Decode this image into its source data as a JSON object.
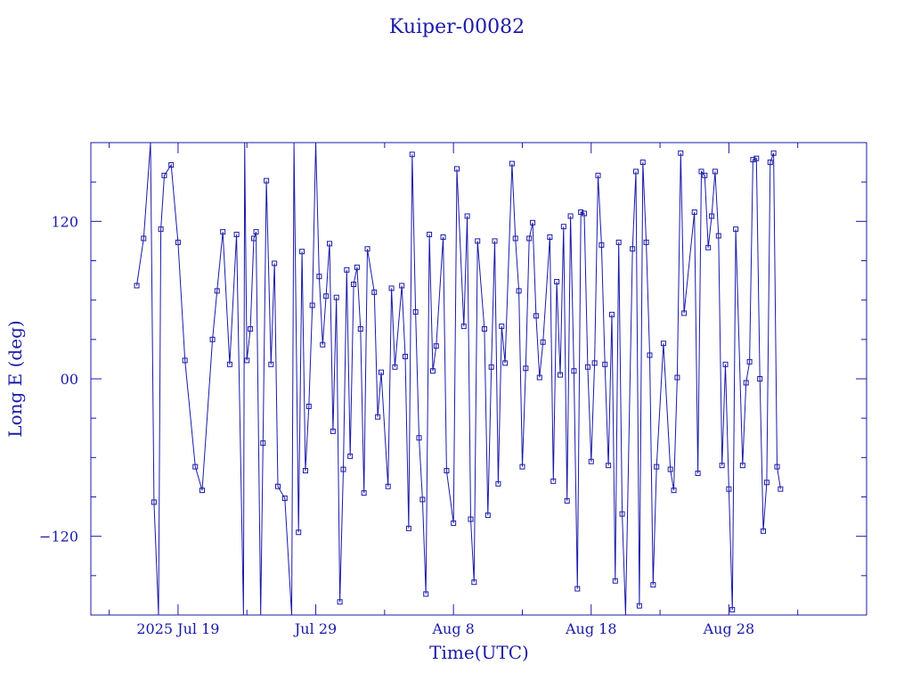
{
  "chart_data": {
    "type": "line",
    "title": "Kuiper-00082",
    "xlabel": "Time(UTC)",
    "ylabel": "Long E (deg)",
    "x_ticks": [
      {
        "date": "2025-07-19",
        "label": "2025 Jul 19"
      },
      {
        "date": "2025-07-29",
        "label": "Jul 29"
      },
      {
        "date": "2025-08-08",
        "label": "Aug  8"
      },
      {
        "date": "2025-08-18",
        "label": "Aug 18"
      },
      {
        "date": "2025-08-28",
        "label": "Aug 28"
      }
    ],
    "y_ticks": [
      {
        "value": 120,
        "label": "120"
      },
      {
        "value": 0,
        "label": "00"
      },
      {
        "value": -120,
        "label": "−120"
      }
    ],
    "xlim": [
      "2025-07-12T16:00",
      "2025-09-07T00:00"
    ],
    "ylim": [
      -180,
      180
    ],
    "grid": false,
    "series": [
      {
        "points": [
          [
            "2025-07-16T00:00",
            71
          ],
          [
            "2025-07-16T12:00",
            107
          ],
          [
            "2025-07-17T00:00",
            180
          ],
          [
            "2025-07-17T06:00",
            -94
          ],
          [
            "2025-07-17T14:00",
            -180
          ],
          [
            "2025-07-17T18:00",
            114
          ],
          [
            "2025-07-18T00:00",
            155
          ],
          [
            "2025-07-18T12:00",
            163
          ],
          [
            "2025-07-19T00:00",
            104
          ],
          [
            "2025-07-19T12:00",
            14
          ],
          [
            "2025-07-20T06:00",
            -67
          ],
          [
            "2025-07-20T18:00",
            -85
          ],
          [
            "2025-07-21T12:00",
            30
          ],
          [
            "2025-07-21T20:00",
            67
          ],
          [
            "2025-07-22T06:00",
            112
          ],
          [
            "2025-07-22T18:00",
            11
          ],
          [
            "2025-07-23T06:00",
            110
          ],
          [
            "2025-07-23T18:00",
            -180
          ],
          [
            "2025-07-23T20:00",
            180
          ],
          [
            "2025-07-24T00:00",
            14
          ],
          [
            "2025-07-24T06:00",
            38
          ],
          [
            "2025-07-24T12:00",
            107
          ],
          [
            "2025-07-24T16:00",
            112
          ],
          [
            "2025-07-25T00:00",
            -180
          ],
          [
            "2025-07-25T04:00",
            -49
          ],
          [
            "2025-07-25T10:00",
            151
          ],
          [
            "2025-07-25T18:00",
            11
          ],
          [
            "2025-07-26T00:00",
            88
          ],
          [
            "2025-07-26T06:00",
            -82
          ],
          [
            "2025-07-26T18:00",
            -91
          ],
          [
            "2025-07-27T06:00",
            -180
          ],
          [
            "2025-07-27T10:00",
            180
          ],
          [
            "2025-07-27T18:00",
            -117
          ],
          [
            "2025-07-28T00:00",
            97
          ],
          [
            "2025-07-28T06:00",
            -70
          ],
          [
            "2025-07-28T12:00",
            -21
          ],
          [
            "2025-07-28T18:00",
            56
          ],
          [
            "2025-07-29T00:00",
            180
          ],
          [
            "2025-07-29T06:00",
            78
          ],
          [
            "2025-07-29T12:00",
            26
          ],
          [
            "2025-07-29T18:00",
            63
          ],
          [
            "2025-07-30T00:00",
            103
          ],
          [
            "2025-07-30T06:00",
            -40
          ],
          [
            "2025-07-30T12:00",
            62
          ],
          [
            "2025-07-30T18:00",
            -170
          ],
          [
            "2025-07-31T00:00",
            -69
          ],
          [
            "2025-07-31T06:00",
            83
          ],
          [
            "2025-07-31T12:00",
            -59
          ],
          [
            "2025-07-31T18:00",
            72
          ],
          [
            "2025-08-01T00:00",
            85
          ],
          [
            "2025-08-01T06:00",
            38
          ],
          [
            "2025-08-01T12:00",
            -87
          ],
          [
            "2025-08-01T18:00",
            99
          ],
          [
            "2025-08-02T06:00",
            66
          ],
          [
            "2025-08-02T12:00",
            -29
          ],
          [
            "2025-08-02T18:00",
            5
          ],
          [
            "2025-08-03T06:00",
            -82
          ],
          [
            "2025-08-03T12:00",
            69
          ],
          [
            "2025-08-03T18:00",
            9
          ],
          [
            "2025-08-04T06:00",
            71
          ],
          [
            "2025-08-04T12:00",
            17
          ],
          [
            "2025-08-04T18:00",
            -114
          ],
          [
            "2025-08-05T00:00",
            171
          ],
          [
            "2025-08-05T06:00",
            51
          ],
          [
            "2025-08-05T12:00",
            -45
          ],
          [
            "2025-08-05T18:00",
            -92
          ],
          [
            "2025-08-06T00:00",
            -164
          ],
          [
            "2025-08-06T06:00",
            110
          ],
          [
            "2025-08-06T12:00",
            6
          ],
          [
            "2025-08-06T18:00",
            25
          ],
          [
            "2025-08-07T06:00",
            108
          ],
          [
            "2025-08-07T12:00",
            -70
          ],
          [
            "2025-08-08T00:00",
            -110
          ],
          [
            "2025-08-08T06:00",
            160
          ],
          [
            "2025-08-08T18:00",
            40
          ],
          [
            "2025-08-09T00:00",
            124
          ],
          [
            "2025-08-09T06:00",
            -107
          ],
          [
            "2025-08-09T12:00",
            -155
          ],
          [
            "2025-08-09T18:00",
            105
          ],
          [
            "2025-08-10T06:00",
            38
          ],
          [
            "2025-08-10T12:00",
            -104
          ],
          [
            "2025-08-10T18:00",
            9
          ],
          [
            "2025-08-11T00:00",
            105
          ],
          [
            "2025-08-11T06:00",
            -80
          ],
          [
            "2025-08-11T12:00",
            40
          ],
          [
            "2025-08-11T18:00",
            12
          ],
          [
            "2025-08-12T06:00",
            164
          ],
          [
            "2025-08-12T12:00",
            107
          ],
          [
            "2025-08-12T18:00",
            67
          ],
          [
            "2025-08-13T00:00",
            -67
          ],
          [
            "2025-08-13T06:00",
            8
          ],
          [
            "2025-08-13T12:00",
            107
          ],
          [
            "2025-08-13T18:00",
            119
          ],
          [
            "2025-08-14T00:00",
            48
          ],
          [
            "2025-08-14T06:00",
            1
          ],
          [
            "2025-08-14T12:00",
            28
          ],
          [
            "2025-08-15T00:00",
            108
          ],
          [
            "2025-08-15T06:00",
            -78
          ],
          [
            "2025-08-15T12:00",
            74
          ],
          [
            "2025-08-15T18:00",
            3
          ],
          [
            "2025-08-16T00:00",
            116
          ],
          [
            "2025-08-16T06:00",
            -93
          ],
          [
            "2025-08-16T12:00",
            124
          ],
          [
            "2025-08-16T18:00",
            6
          ],
          [
            "2025-08-17T00:00",
            -160
          ],
          [
            "2025-08-17T06:00",
            127
          ],
          [
            "2025-08-17T12:00",
            126
          ],
          [
            "2025-08-17T18:00",
            9
          ],
          [
            "2025-08-18T00:00",
            -63
          ],
          [
            "2025-08-18T06:00",
            12
          ],
          [
            "2025-08-18T12:00",
            155
          ],
          [
            "2025-08-18T18:00",
            102
          ],
          [
            "2025-08-19T00:00",
            11
          ],
          [
            "2025-08-19T06:00",
            -66
          ],
          [
            "2025-08-19T12:00",
            49
          ],
          [
            "2025-08-19T18:00",
            -154
          ],
          [
            "2025-08-20T00:00",
            104
          ],
          [
            "2025-08-20T06:00",
            -103
          ],
          [
            "2025-08-20T12:00",
            -180
          ],
          [
            "2025-08-21T00:00",
            99
          ],
          [
            "2025-08-21T06:00",
            158
          ],
          [
            "2025-08-21T12:00",
            -173
          ],
          [
            "2025-08-21T18:00",
            165
          ],
          [
            "2025-08-22T00:00",
            104
          ],
          [
            "2025-08-22T06:00",
            18
          ],
          [
            "2025-08-22T12:00",
            -157
          ],
          [
            "2025-08-22T18:00",
            -67
          ],
          [
            "2025-08-23T06:00",
            27
          ],
          [
            "2025-08-23T18:00",
            -69
          ],
          [
            "2025-08-24T00:00",
            -85
          ],
          [
            "2025-08-24T06:00",
            1
          ],
          [
            "2025-08-24T12:00",
            172
          ],
          [
            "2025-08-24T18:00",
            50
          ],
          [
            "2025-08-25T12:00",
            127
          ],
          [
            "2025-08-25T18:00",
            -72
          ],
          [
            "2025-08-26T00:00",
            158
          ],
          [
            "2025-08-26T06:00",
            155
          ],
          [
            "2025-08-26T12:00",
            100
          ],
          [
            "2025-08-26T18:00",
            124
          ],
          [
            "2025-08-27T00:00",
            158
          ],
          [
            "2025-08-27T06:00",
            109
          ],
          [
            "2025-08-27T12:00",
            -66
          ],
          [
            "2025-08-27T18:00",
            11
          ],
          [
            "2025-08-28T00:00",
            -84
          ],
          [
            "2025-08-28T06:00",
            -176
          ],
          [
            "2025-08-28T12:00",
            114
          ],
          [
            "2025-08-29T00:00",
            -66
          ],
          [
            "2025-08-29T06:00",
            -3
          ],
          [
            "2025-08-29T12:00",
            13
          ],
          [
            "2025-08-29T18:00",
            167
          ],
          [
            "2025-08-30T00:00",
            168
          ],
          [
            "2025-08-30T06:00",
            0
          ],
          [
            "2025-08-30T12:00",
            -116
          ],
          [
            "2025-08-30T18:00",
            -79
          ],
          [
            "2025-08-31T00:00",
            165
          ],
          [
            "2025-08-31T06:00",
            172
          ],
          [
            "2025-08-31T12:00",
            -67
          ],
          [
            "2025-08-31T18:00",
            -84
          ]
        ]
      }
    ]
  },
  "colors": {
    "ink": "#1a1aa6",
    "background": "#ffffff"
  }
}
